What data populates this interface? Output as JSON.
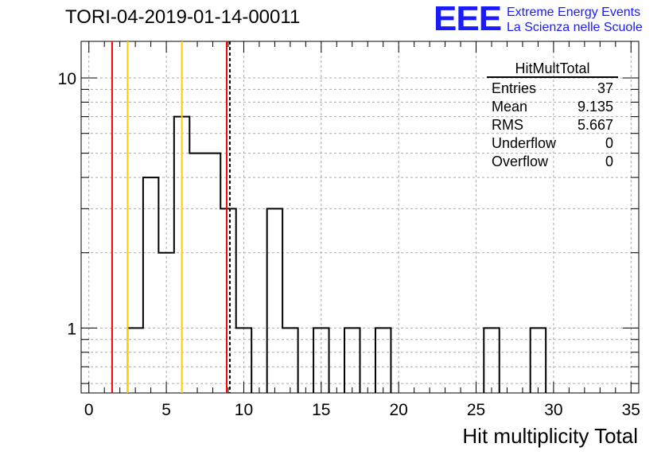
{
  "title": "TORI-04-2019-01-14-00011",
  "logo": {
    "mark": "EEE",
    "line1": "Extreme Energy Events",
    "line2": "La Scienza nelle Scuole",
    "color": "#1a1aff"
  },
  "stats": {
    "name": "HitMultTotal",
    "rows": [
      {
        "label": "Entries",
        "value": "37"
      },
      {
        "label": "Mean",
        "value": "9.135"
      },
      {
        "label": "RMS",
        "value": "5.667"
      },
      {
        "label": "Underflow",
        "value": "0"
      },
      {
        "label": "Overflow",
        "value": "0"
      }
    ]
  },
  "chart_data": {
    "type": "bar",
    "xlabel": "Hit multiplicity Total",
    "ylabel": "",
    "xlim": [
      -0.5,
      35.5
    ],
    "ylim": [
      0.55,
      14
    ],
    "y_scale": "log",
    "grid": true,
    "bin_width": 1,
    "bin_edges_start": 2.5,
    "values": [
      1,
      4,
      2,
      7,
      5,
      5,
      3,
      1,
      0,
      3,
      1,
      0,
      1,
      0,
      1,
      0,
      1,
      0,
      0,
      0,
      0,
      0,
      0,
      1,
      0,
      0,
      1
    ],
    "x_ticks": [
      0,
      5,
      10,
      15,
      20,
      25,
      30,
      35
    ],
    "y_ticks": [
      1,
      10
    ],
    "vertical_lines": [
      {
        "x": 1.5,
        "color": "#ff0000",
        "style": "solid"
      },
      {
        "x": 2.5,
        "color": "#ffcc00",
        "style": "solid"
      },
      {
        "x": 6.0,
        "color": "#ffcc00",
        "style": "solid"
      },
      {
        "x": 8.9,
        "color": "#ff0000",
        "style": "solid"
      },
      {
        "x": 9.1,
        "color": "#000000",
        "style": "dashed"
      }
    ]
  }
}
